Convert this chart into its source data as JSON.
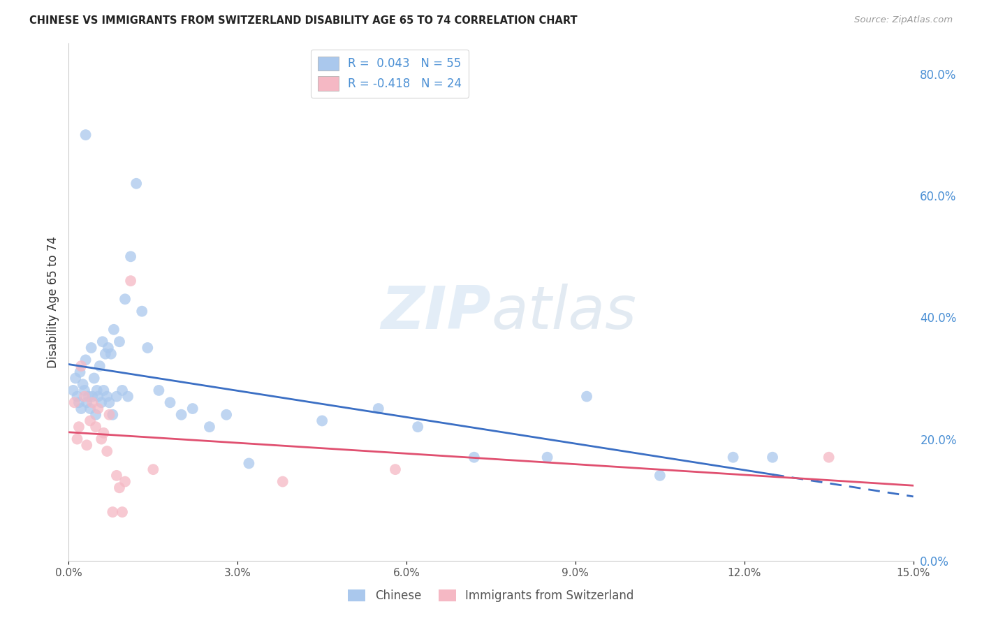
{
  "title": "CHINESE VS IMMIGRANTS FROM SWITZERLAND DISABILITY AGE 65 TO 74 CORRELATION CHART",
  "source": "Source: ZipAtlas.com",
  "xlabel_vals": [
    0.0,
    3.0,
    6.0,
    9.0,
    12.0,
    15.0
  ],
  "ylabel_vals": [
    0.0,
    20.0,
    40.0,
    60.0,
    80.0
  ],
  "ylabel_label": "Disability Age 65 to 74",
  "xlim": [
    0.0,
    15.0
  ],
  "ylim": [
    0.0,
    85.0
  ],
  "legend_r1": "R =  0.043",
  "legend_n1": "N = 55",
  "legend_r2": "R = -0.418",
  "legend_n2": "N = 24",
  "color_chinese": "#aac8ed",
  "color_swiss": "#f5b8c4",
  "color_line_chinese": "#3b6fc4",
  "color_line_swiss": "#e05070",
  "background_color": "#ffffff",
  "grid_color": "#cccccc",
  "watermark_zip": "ZIP",
  "watermark_atlas": "atlas",
  "chinese_x": [
    0.08,
    0.12,
    0.15,
    0.18,
    0.2,
    0.22,
    0.25,
    0.28,
    0.3,
    0.32,
    0.35,
    0.38,
    0.4,
    0.42,
    0.45,
    0.48,
    0.5,
    0.52,
    0.55,
    0.58,
    0.6,
    0.62,
    0.65,
    0.68,
    0.7,
    0.72,
    0.75,
    0.78,
    0.8,
    0.85,
    0.9,
    0.95,
    1.0,
    1.05,
    1.1,
    1.2,
    1.3,
    1.4,
    1.6,
    1.8,
    2.0,
    2.2,
    2.5,
    2.8,
    3.2,
    4.5,
    5.5,
    6.2,
    7.2,
    8.5,
    9.2,
    10.5,
    11.8,
    12.5,
    0.3
  ],
  "chinese_y": [
    28.0,
    30.0,
    27.0,
    26.0,
    31.0,
    25.0,
    29.0,
    28.0,
    33.0,
    26.0,
    27.0,
    25.0,
    35.0,
    27.0,
    30.0,
    24.0,
    28.0,
    27.0,
    32.0,
    26.0,
    36.0,
    28.0,
    34.0,
    27.0,
    35.0,
    26.0,
    34.0,
    24.0,
    38.0,
    27.0,
    36.0,
    28.0,
    43.0,
    27.0,
    50.0,
    62.0,
    41.0,
    35.0,
    28.0,
    26.0,
    24.0,
    25.0,
    22.0,
    24.0,
    16.0,
    23.0,
    25.0,
    22.0,
    17.0,
    17.0,
    27.0,
    14.0,
    17.0,
    17.0,
    70.0
  ],
  "swiss_x": [
    0.1,
    0.15,
    0.18,
    0.22,
    0.28,
    0.32,
    0.38,
    0.42,
    0.48,
    0.52,
    0.58,
    0.62,
    0.68,
    0.72,
    0.78,
    0.85,
    0.9,
    0.95,
    1.0,
    1.1,
    1.5,
    3.8,
    5.8,
    13.5
  ],
  "swiss_y": [
    26.0,
    20.0,
    22.0,
    32.0,
    27.0,
    19.0,
    23.0,
    26.0,
    22.0,
    25.0,
    20.0,
    21.0,
    18.0,
    24.0,
    8.0,
    14.0,
    12.0,
    8.0,
    13.0,
    46.0,
    15.0,
    13.0,
    15.0,
    17.0
  ]
}
